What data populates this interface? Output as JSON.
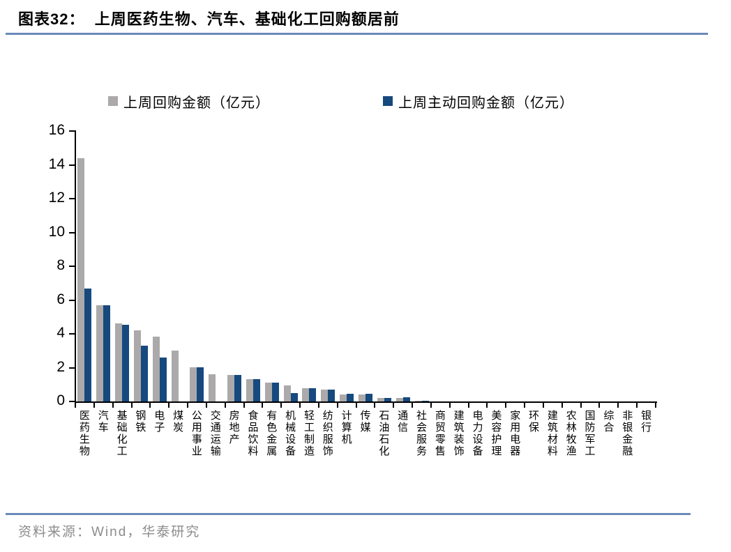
{
  "page": {
    "title": "图表32：  上周医药生物、汽车、基础化工回购额居前",
    "source": "资料来源：Wind，华泰研究"
  },
  "colors": {
    "bar_gray": "#ABA9A9",
    "bar_blue": "#16497E",
    "rule_blue": "#6A8AB8",
    "source_gray": "#8C8C8C"
  },
  "chart_data": {
    "type": "bar",
    "title": "上周医药生物、汽车、基础化工回购额居前",
    "xlabel": "",
    "ylabel": "",
    "ylim": [
      0,
      16
    ],
    "yticks": [
      0,
      2,
      4,
      6,
      8,
      10,
      12,
      14,
      16
    ],
    "grid": false,
    "legend_position": "top",
    "categories": [
      "医药生物",
      "汽车",
      "基础化工",
      "钢铁",
      "电子",
      "煤炭",
      "公用事业",
      "交通运输",
      "房地产",
      "食品饮料",
      "有色金属",
      "机械设备",
      "轻工制造",
      "纺织服饰",
      "计算机",
      "传媒",
      "石油石化",
      "通信",
      "社会服务",
      "商贸零售",
      "建筑装饰",
      "电力设备",
      "美容护理",
      "家用电器",
      "环保",
      "建筑材料",
      "农林牧渔",
      "国防军工",
      "综合",
      "非银金融",
      "银行"
    ],
    "series": [
      {
        "name": "上周回购金额（亿元）",
        "color_key": "bar_gray",
        "values": [
          14.4,
          5.7,
          4.6,
          4.2,
          3.85,
          3.0,
          2.0,
          1.6,
          1.55,
          1.3,
          1.1,
          0.95,
          0.8,
          0.7,
          0.42,
          0.42,
          0.2,
          0.2,
          0.06,
          0,
          0,
          0,
          0,
          0,
          0,
          0,
          0,
          0,
          0,
          0,
          0
        ]
      },
      {
        "name": "上周主动回购金额（亿元）",
        "color_key": "bar_blue",
        "values": [
          6.7,
          5.7,
          4.55,
          3.3,
          2.6,
          0,
          2.0,
          0,
          1.55,
          1.3,
          1.1,
          0.5,
          0.8,
          0.72,
          0.44,
          0.44,
          0.22,
          0.25,
          0.06,
          0,
          0,
          0,
          0,
          0,
          0,
          0,
          0,
          0,
          0,
          0,
          0
        ]
      }
    ]
  }
}
